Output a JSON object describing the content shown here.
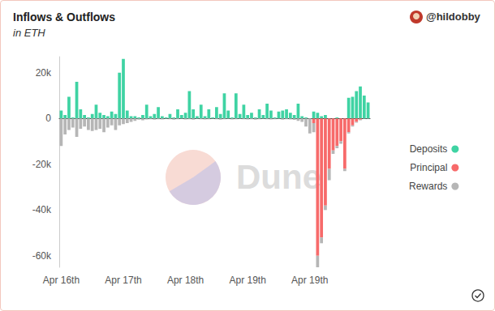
{
  "chart_data": {
    "type": "bar",
    "title": "Inflows & Outflows",
    "subtitle": "in ETH",
    "source": "@hildobby",
    "watermark": "Dune",
    "categories": [
      "Apr 16th",
      null,
      null,
      null,
      null,
      null,
      null,
      null,
      null,
      null,
      null,
      null,
      null,
      null,
      null,
      null,
      "Apr 17th",
      null,
      null,
      null,
      null,
      null,
      null,
      null,
      null,
      null,
      null,
      null,
      null,
      null,
      null,
      null,
      "Apr 18th",
      null,
      null,
      null,
      null,
      null,
      null,
      null,
      null,
      null,
      null,
      null,
      null,
      null,
      null,
      null,
      "Apr 19th",
      null,
      null,
      null,
      null,
      null,
      null,
      null,
      null,
      null,
      null,
      null,
      null,
      null,
      null,
      null,
      "Apr 19th",
      null,
      null,
      null,
      null,
      null,
      null,
      null,
      null,
      null,
      null,
      null,
      null,
      null,
      null,
      null
    ],
    "series": [
      {
        "name": "Deposits",
        "color": "#3fd3a3",
        "values": [
          3500,
          1500,
          9500,
          500,
          16000,
          4000,
          1500,
          500,
          2000,
          6000,
          2500,
          1500,
          1000,
          3000,
          2000,
          20000,
          26000,
          3500,
          1000,
          1000,
          500,
          1500,
          6000,
          1000,
          2000,
          5000,
          1000,
          500,
          2000,
          500,
          4000,
          1500,
          2500,
          12000,
          4000,
          1000,
          6000,
          1000,
          4000,
          500,
          5000,
          2000,
          11000,
          3500,
          500,
          11000,
          2000,
          6000,
          1500,
          2500,
          500,
          4000,
          1500,
          6500,
          3500,
          500,
          3000,
          3500,
          4000,
          2500,
          1500,
          6500,
          1000,
          500,
          0,
          3000,
          2500,
          1000,
          1500,
          0,
          0,
          500,
          0,
          0,
          9000,
          9500,
          12000,
          14000,
          10000,
          7000
        ]
      },
      {
        "name": "Principal",
        "color": "#f76a6a",
        "values": [
          0,
          0,
          0,
          0,
          0,
          0,
          0,
          0,
          0,
          0,
          0,
          0,
          0,
          0,
          0,
          0,
          0,
          0,
          0,
          0,
          0,
          0,
          0,
          0,
          0,
          0,
          0,
          0,
          0,
          0,
          0,
          0,
          0,
          0,
          0,
          0,
          0,
          0,
          0,
          0,
          0,
          0,
          0,
          0,
          0,
          0,
          0,
          0,
          0,
          0,
          0,
          0,
          0,
          0,
          0,
          0,
          0,
          0,
          0,
          0,
          0,
          0,
          0,
          0,
          0,
          -2000,
          -60000,
          -52000,
          -38000,
          -22000,
          -14000,
          -12000,
          -10000,
          -22000,
          -6000,
          -3000,
          -1500,
          -500,
          0,
          0
        ]
      },
      {
        "name": "Rewards",
        "color": "#b6b6b6",
        "values": [
          -12000,
          -7000,
          -5000,
          -4000,
          -8000,
          -4500,
          -3500,
          -5000,
          -5500,
          -5000,
          -4500,
          -6000,
          -4000,
          -3000,
          -5000,
          -3000,
          -2500,
          -2000,
          -1500,
          -1000,
          -500,
          -800,
          -400,
          -300,
          -500,
          -300,
          -400,
          -200,
          -300,
          -500,
          -300,
          -200,
          -400,
          -300,
          -500,
          -200,
          -300,
          -400,
          -300,
          -200,
          -300,
          -500,
          -300,
          -200,
          -400,
          -300,
          -200,
          -300,
          -400,
          -300,
          -500,
          -300,
          -200,
          -300,
          -400,
          -300,
          -200,
          -500,
          -300,
          -400,
          -600,
          -1000,
          -1500,
          -3500,
          -6500,
          -4000,
          -5000,
          -2500,
          -2000,
          -5000,
          -1500,
          -1000,
          -1000,
          -1000,
          -500,
          -500,
          -300,
          -300,
          -200,
          -200
        ]
      }
    ],
    "ylim": [
      -65000,
      27000
    ],
    "yticks": [
      {
        "value": -60000,
        "label": "-60k"
      },
      {
        "value": -40000,
        "label": "-40k"
      },
      {
        "value": -20000,
        "label": "-20k"
      },
      0,
      {
        "value": 20000,
        "label": "20k"
      }
    ],
    "stacked": true,
    "legend": "right",
    "grid": false
  }
}
